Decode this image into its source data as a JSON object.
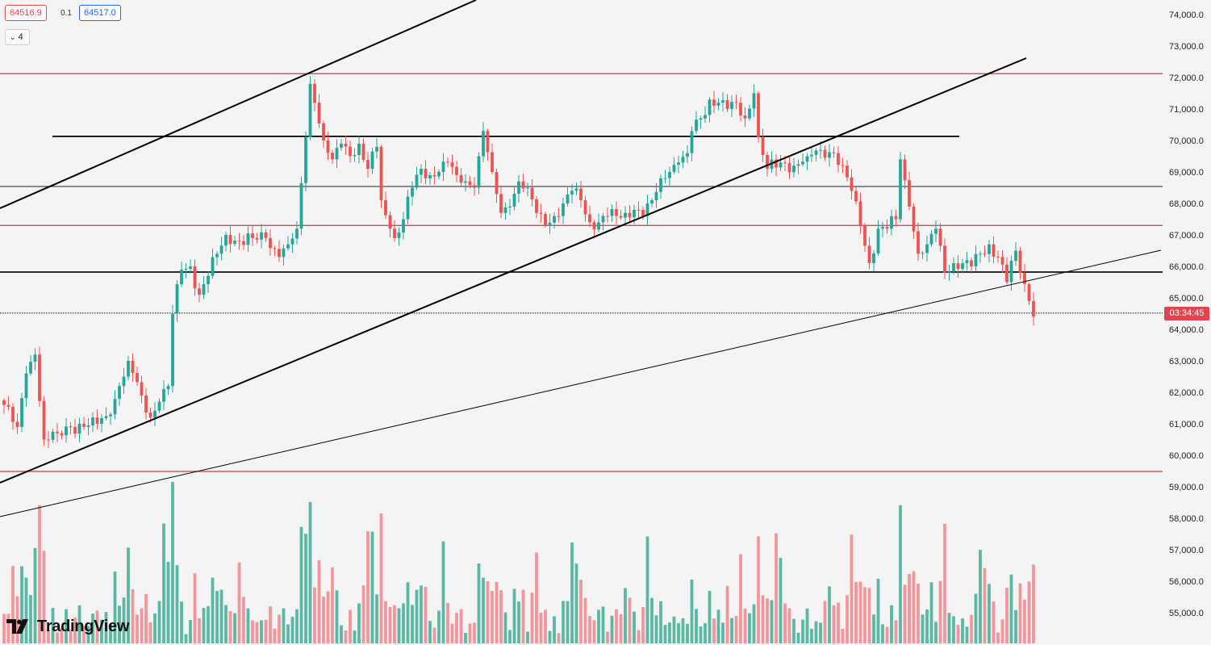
{
  "quote": {
    "bid": "64516.9",
    "spread": "0.1",
    "ask": "64517.0"
  },
  "indicator_toggle": {
    "count": "4"
  },
  "countdown": "03:34:45",
  "branding": {
    "name": "TradingView"
  },
  "colors": {
    "up": "#26a69a",
    "down": "#ef5350",
    "up_volume": "#5bb8a4",
    "down_volume": "#f3969b",
    "hline_red": "#e0454f",
    "trendline": "#000000",
    "background": "#f4f4f4"
  },
  "chart_data": {
    "type": "candlestick",
    "ylim": [
      54400,
      74400
    ],
    "y_ticks": [
      "74,000.0",
      "73,000.0",
      "72,000.0",
      "71,000.0",
      "70,000.0",
      "69,000.0",
      "68,000.0",
      "67,000.0",
      "66,000.0",
      "65,000.0",
      "64,000.0",
      "63,000.0",
      "62,000.0",
      "61,000.0",
      "60,000.0",
      "59,000.0",
      "58,000.0",
      "57,000.0",
      "56,000.0",
      "55,000.0"
    ],
    "y_tick_values": [
      74000,
      73000,
      72000,
      71000,
      70000,
      69000,
      68000,
      67000,
      66000,
      65000,
      64000,
      63000,
      62000,
      61000,
      60000,
      59000,
      58000,
      57000,
      56000,
      55000
    ],
    "last_price": 64517,
    "horizontal_levels": [
      {
        "price": 72120,
        "color": "red"
      },
      {
        "price": 70130,
        "color": "black",
        "thickness": "medium"
      },
      {
        "price": 68540,
        "color": "black",
        "thickness": "thin"
      },
      {
        "price": 67300,
        "color": "red"
      },
      {
        "price": 65820,
        "color": "black",
        "thickness": "medium"
      },
      {
        "price": 64517,
        "color": "black",
        "style": "dotted"
      },
      {
        "price": 59490,
        "color": "red"
      }
    ],
    "anchors": [
      [
        0,
        61600
      ],
      [
        3,
        60900
      ],
      [
        5,
        62600
      ],
      [
        7,
        63200
      ],
      [
        9,
        60500
      ],
      [
        12,
        60700
      ],
      [
        15,
        60900
      ],
      [
        18,
        60900
      ],
      [
        21,
        61000
      ],
      [
        24,
        61300
      ],
      [
        26,
        62200
      ],
      [
        28,
        63000
      ],
      [
        31,
        61900
      ],
      [
        33,
        61200
      ],
      [
        35,
        61700
      ],
      [
        37,
        62200
      ],
      [
        38,
        64500
      ],
      [
        40,
        65900
      ],
      [
        42,
        66000
      ],
      [
        44,
        65100
      ],
      [
        46,
        65700
      ],
      [
        48,
        66400
      ],
      [
        50,
        67000
      ],
      [
        53,
        66800
      ],
      [
        56,
        66900
      ],
      [
        59,
        66900
      ],
      [
        62,
        66300
      ],
      [
        64,
        66700
      ],
      [
        66,
        67200
      ],
      [
        68,
        70100
      ],
      [
        69,
        71800
      ],
      [
        70,
        71200
      ],
      [
        72,
        70000
      ],
      [
        74,
        69400
      ],
      [
        76,
        69900
      ],
      [
        78,
        69500
      ],
      [
        80,
        69900
      ],
      [
        82,
        69100
      ],
      [
        84,
        69800
      ],
      [
        85,
        68100
      ],
      [
        87,
        67200
      ],
      [
        88,
        66900
      ],
      [
        90,
        67500
      ],
      [
        92,
        68500
      ],
      [
        94,
        69100
      ],
      [
        96,
        68900
      ],
      [
        98,
        69000
      ],
      [
        100,
        69300
      ],
      [
        102,
        68900
      ],
      [
        104,
        68700
      ],
      [
        106,
        68500
      ],
      [
        108,
        70300
      ],
      [
        110,
        69000
      ],
      [
        112,
        67700
      ],
      [
        114,
        67900
      ],
      [
        116,
        68700
      ],
      [
        118,
        68500
      ],
      [
        120,
        67700
      ],
      [
        122,
        67300
      ],
      [
        124,
        67600
      ],
      [
        126,
        68000
      ],
      [
        128,
        68400
      ],
      [
        130,
        68100
      ],
      [
        132,
        67400
      ],
      [
        134,
        67400
      ],
      [
        136,
        67600
      ],
      [
        138,
        67600
      ],
      [
        140,
        67700
      ],
      [
        142,
        67800
      ],
      [
        144,
        67600
      ],
      [
        146,
        68100
      ],
      [
        148,
        68800
      ],
      [
        150,
        69000
      ],
      [
        152,
        69300
      ],
      [
        154,
        69600
      ],
      [
        155,
        70300
      ],
      [
        157,
        70700
      ],
      [
        159,
        71300
      ],
      [
        161,
        71200
      ],
      [
        163,
        71000
      ],
      [
        165,
        71200
      ],
      [
        167,
        70700
      ],
      [
        169,
        71500
      ],
      [
        170,
        70100
      ],
      [
        172,
        69100
      ],
      [
        175,
        69300
      ],
      [
        178,
        69200
      ],
      [
        181,
        69500
      ],
      [
        184,
        69700
      ],
      [
        187,
        69600
      ],
      [
        189,
        69200
      ],
      [
        191,
        68400
      ],
      [
        193,
        67300
      ],
      [
        195,
        66100
      ],
      [
        197,
        67200
      ],
      [
        199,
        67200
      ],
      [
        201,
        67500
      ],
      [
        202,
        69400
      ],
      [
        204,
        67900
      ],
      [
        206,
        66400
      ],
      [
        208,
        66700
      ],
      [
        210,
        67200
      ],
      [
        212,
        65800
      ],
      [
        214,
        66100
      ],
      [
        216,
        66100
      ],
      [
        218,
        66000
      ],
      [
        220,
        66400
      ],
      [
        222,
        66700
      ],
      [
        224,
        66300
      ],
      [
        226,
        65500
      ],
      [
        228,
        66500
      ],
      [
        229,
        65800
      ],
      [
        231,
        64900
      ],
      [
        232,
        64400
      ]
    ],
    "volume_pattern": [
      0.15,
      0.2,
      0.35,
      0.28,
      0.12,
      0.1,
      0.18,
      0.62,
      0.3,
      0.08,
      0.1,
      0.14,
      0.06,
      0.09,
      0.12,
      0.1,
      0.09,
      0.13,
      0.08,
      0.11,
      0.1,
      0.15,
      0.09,
      0.21,
      0.12,
      0.3,
      0.08,
      0.2,
      0.48,
      0.22,
      0.07,
      0.05,
      0.1,
      0.08,
      0.12,
      0.18,
      0.72,
      0.58,
      0.3,
      0.12,
      0.08,
      0.06,
      0.14,
      0.18,
      0.09,
      0.1
    ]
  }
}
